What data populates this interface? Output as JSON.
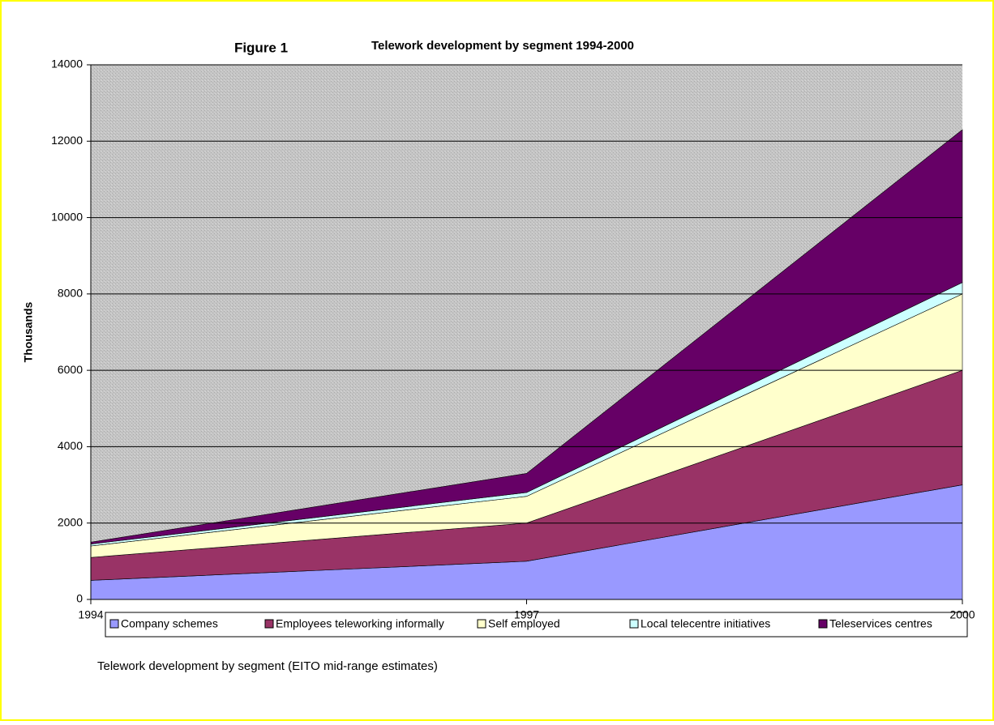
{
  "chart_data": {
    "type": "stacked_area",
    "figure_label": "Figure 1",
    "title": "Telework development by segment 1994-2000",
    "ylabel": "Thousands",
    "caption": "Telework development by segment (EITO mid-range estimates)",
    "x": [
      1994,
      1997,
      2000
    ],
    "xlim": [
      1994,
      2000
    ],
    "xticks": [
      1994,
      1997,
      2000
    ],
    "ylim": [
      0,
      14000
    ],
    "yticks": [
      0,
      2000,
      4000,
      6000,
      8000,
      10000,
      12000,
      14000
    ],
    "grid": true,
    "legend": "bottom",
    "series": [
      {
        "name": "Company schemes",
        "color": "#9999ff",
        "values": [
          500,
          1000,
          3000
        ]
      },
      {
        "name": "Employees teleworking informally",
        "color": "#993366",
        "values": [
          600,
          1000,
          3000
        ]
      },
      {
        "name": "Self employed",
        "color": "#ffffcc",
        "values": [
          300,
          700,
          2000
        ]
      },
      {
        "name": "Local telecentre initiatives",
        "color": "#ccffff",
        "values": [
          50,
          100,
          300
        ]
      },
      {
        "name": "Teleservices centres",
        "color": "#660066",
        "values": [
          50,
          500,
          4000
        ]
      }
    ]
  }
}
